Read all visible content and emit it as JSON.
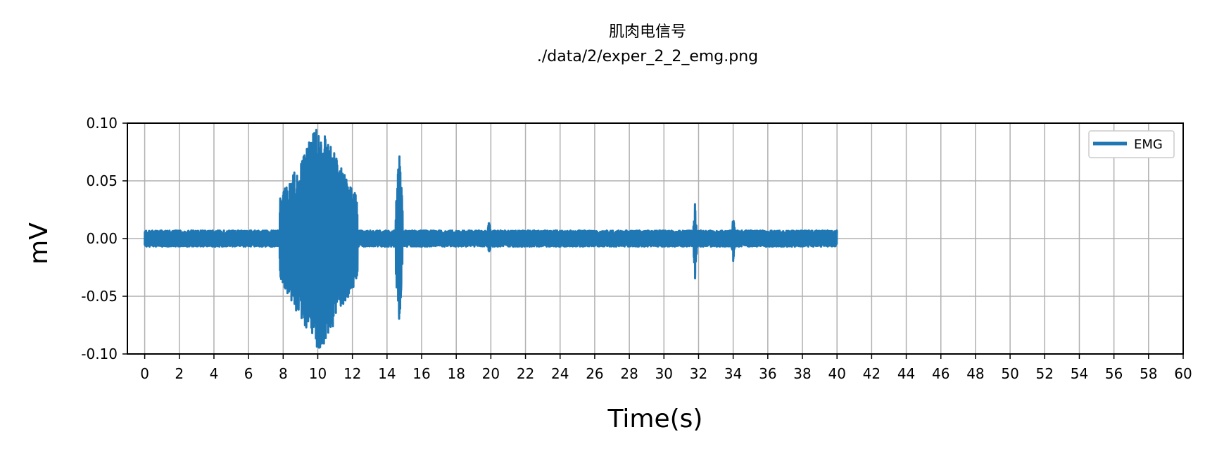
{
  "chart_data": {
    "type": "line",
    "title": "肌肉电信号",
    "subtitle": "./data/2/exper_2_2_emg.png",
    "xlabel": "Time(s)",
    "ylabel": "mV",
    "xlim": [
      -1,
      60
    ],
    "ylim": [
      -0.1,
      0.1
    ],
    "x_ticks": [
      0,
      2,
      4,
      6,
      8,
      10,
      12,
      14,
      16,
      18,
      20,
      22,
      24,
      26,
      28,
      30,
      32,
      34,
      36,
      38,
      40,
      42,
      44,
      46,
      48,
      50,
      52,
      54,
      56,
      58,
      60
    ],
    "y_ticks": [
      0.1,
      0.05,
      0.0,
      -0.05,
      -0.1
    ],
    "y_tick_labels": [
      "0.10",
      "0.05",
      "0.00",
      "-0.05",
      "-0.10"
    ],
    "grid": true,
    "legend_position": "top-right",
    "series": [
      {
        "name": "EMG",
        "color": "#1f77b4",
        "x_range": [
          0,
          40
        ],
        "baseline_amplitude": 0.005,
        "bursts": [
          {
            "start": 7.8,
            "end": 12.3,
            "amplitude": 0.1
          },
          {
            "start": 14.5,
            "end": 14.9,
            "amplitude": 0.08
          },
          {
            "start": 19.8,
            "end": 20.0,
            "amplitude": 0.016
          },
          {
            "start": 31.7,
            "end": 31.9,
            "amplitude": 0.035
          },
          {
            "start": 33.9,
            "end": 34.1,
            "amplitude": 0.02
          }
        ]
      }
    ]
  }
}
